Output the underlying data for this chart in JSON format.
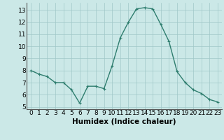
{
  "x": [
    0,
    1,
    2,
    3,
    4,
    5,
    6,
    7,
    8,
    9,
    10,
    11,
    12,
    13,
    14,
    15,
    16,
    17,
    18,
    19,
    20,
    21,
    22,
    23
  ],
  "y": [
    8.0,
    7.7,
    7.5,
    7.0,
    7.0,
    6.4,
    5.3,
    6.7,
    6.7,
    6.5,
    8.4,
    10.7,
    12.0,
    13.1,
    13.2,
    13.1,
    11.8,
    10.4,
    7.9,
    7.0,
    6.4,
    6.1,
    5.6,
    5.4
  ],
  "xlabel": "Humidex (Indice chaleur)",
  "ylim": [
    4.8,
    13.6
  ],
  "xlim": [
    -0.5,
    23.5
  ],
  "yticks": [
    5,
    6,
    7,
    8,
    9,
    10,
    11,
    12,
    13
  ],
  "xticks": [
    0,
    1,
    2,
    3,
    4,
    5,
    6,
    7,
    8,
    9,
    10,
    11,
    12,
    13,
    14,
    15,
    16,
    17,
    18,
    19,
    20,
    21,
    22,
    23
  ],
  "line_color": "#2e7d6e",
  "marker": "+",
  "marker_color": "#2e7d6e",
  "bg_color": "#cbe8e7",
  "grid_color": "#a0c8c8",
  "tick_fontsize": 6.5,
  "label_fontsize": 7.5,
  "linewidth": 1.0,
  "markersize": 3.5
}
